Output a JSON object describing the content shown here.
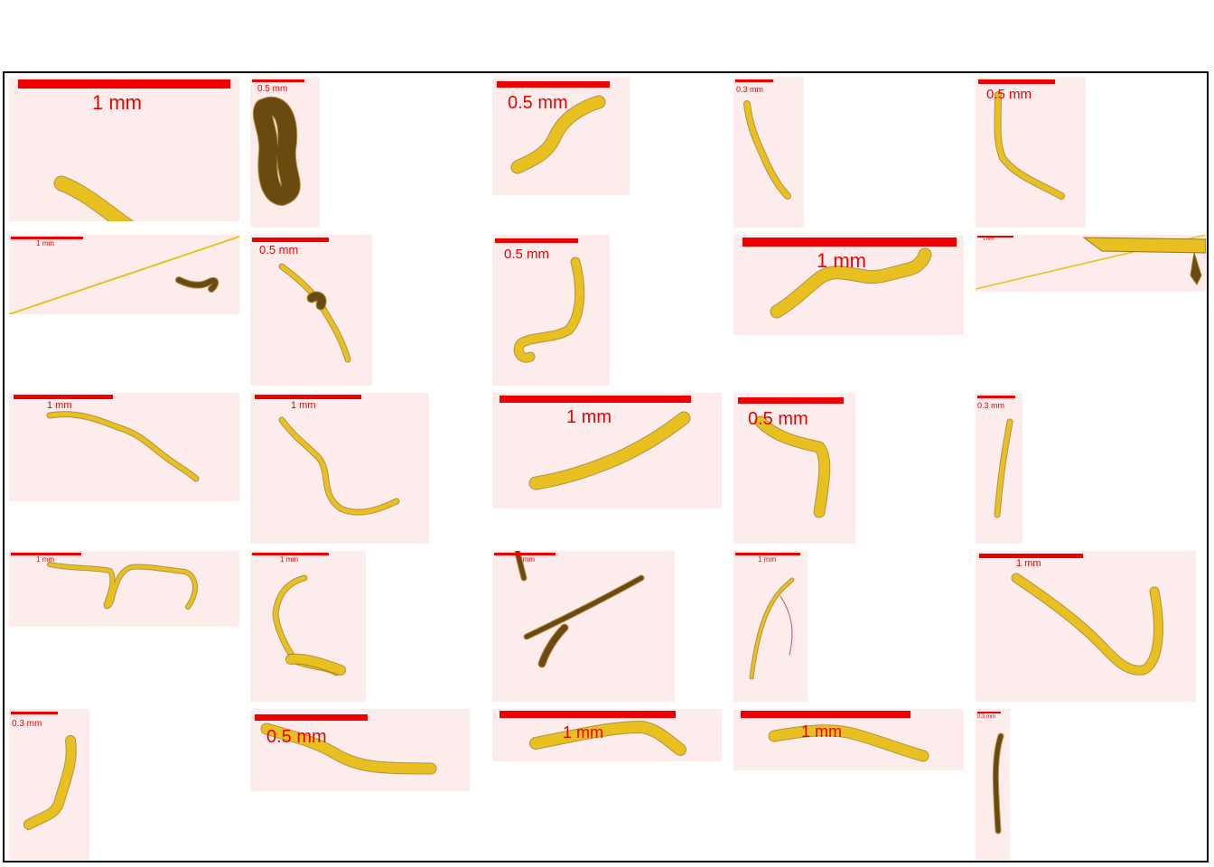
{
  "colors": {
    "tile_background": "#fcecec",
    "scale_bar": "#ee0000",
    "fiber_fill": "#e8c020",
    "fiber_edge": "#9a7310",
    "dark_particle": "#6b4a12",
    "frame_border": "#000000"
  },
  "tiles": [
    {
      "scale_label": "1 mm",
      "particle": "yellow fiber"
    },
    {
      "scale_label": "0.5 mm",
      "particle": "dark fragment"
    },
    {
      "scale_label": "0.5 mm",
      "particle": "yellow fiber"
    },
    {
      "scale_label": "0.3 mm",
      "particle": "yellow fiber"
    },
    {
      "scale_label": "0.5 mm",
      "particle": "yellow fiber"
    },
    {
      "scale_label": "1 mm",
      "particle": "thin line with fragment"
    },
    {
      "scale_label": "0.5 mm",
      "particle": "yellow fiber"
    },
    {
      "scale_label": "0.5 mm",
      "particle": "yellow fiber"
    },
    {
      "scale_label": "1 mm",
      "particle": "yellow fiber"
    },
    {
      "scale_label": "1 mm",
      "particle": "thin line with large fiber"
    },
    {
      "scale_label": "1 mm",
      "particle": "yellow fiber"
    },
    {
      "scale_label": "1 mm",
      "particle": "yellow fiber"
    },
    {
      "scale_label": "1 mm",
      "particle": "yellow fiber"
    },
    {
      "scale_label": "0.5 mm",
      "particle": "yellow fiber"
    },
    {
      "scale_label": "0.3 mm",
      "particle": "yellow fiber"
    },
    {
      "scale_label": "1 mm",
      "particle": "yellow fiber"
    },
    {
      "scale_label": "1 mm",
      "particle": "yellow fiber"
    },
    {
      "scale_label": "1 mm",
      "particle": "dark fibers"
    },
    {
      "scale_label": "1 mm",
      "particle": "thin fiber"
    },
    {
      "scale_label": "1 mm",
      "particle": "yellow fiber"
    },
    {
      "scale_label": "0.3 mm",
      "particle": "yellow fiber"
    },
    {
      "scale_label": "0.5 mm",
      "particle": "yellow fiber"
    },
    {
      "scale_label": "1 mm",
      "particle": "yellow fiber"
    },
    {
      "scale_label": "1 mm",
      "particle": "yellow fiber"
    },
    {
      "scale_label": "0.3 mm",
      "particle": "dark fiber"
    }
  ]
}
